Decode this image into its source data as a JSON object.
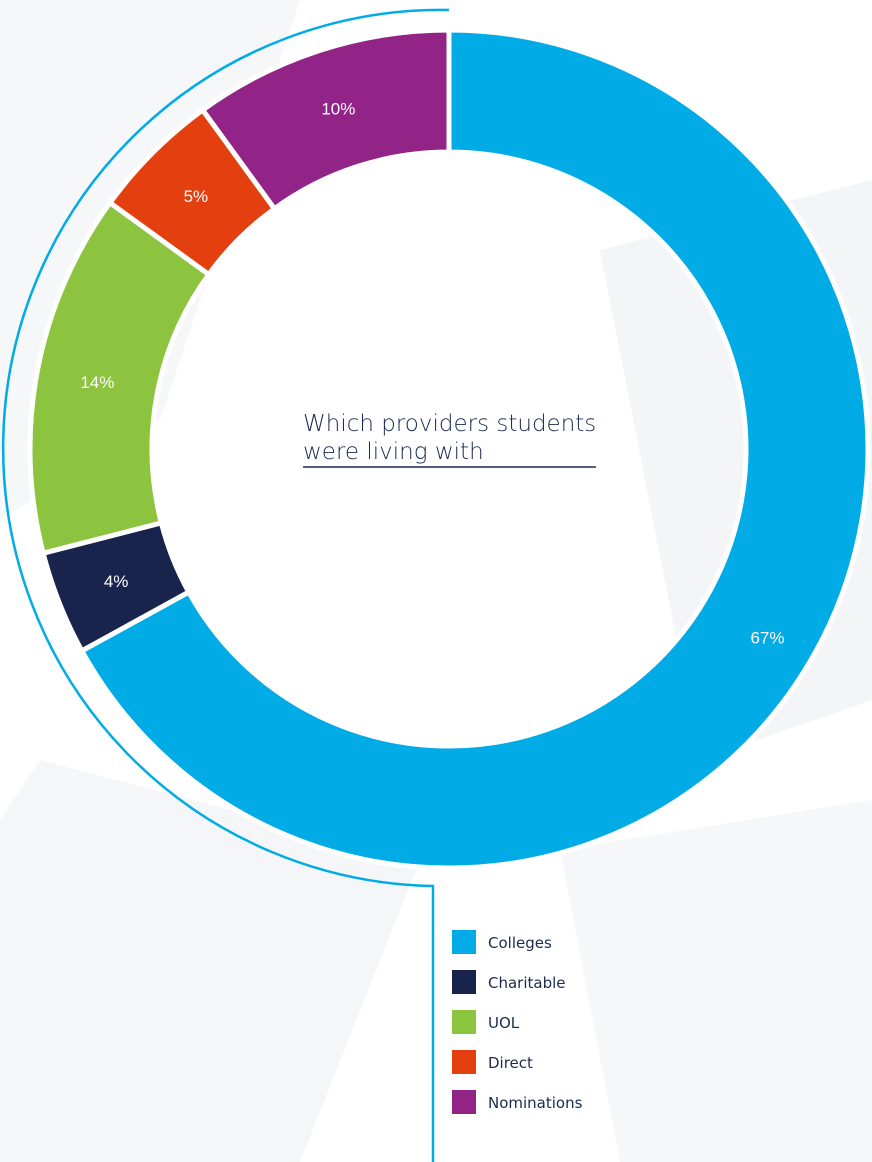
{
  "chart_data": {
    "type": "pie",
    "title_lines": [
      "Which providers students",
      "were living with"
    ],
    "categories": [
      "Colleges",
      "Charitable",
      "UOL",
      "Direct",
      "Nominations"
    ],
    "values": [
      67,
      4,
      14,
      5,
      10
    ],
    "labels": [
      "67%",
      "4%",
      "14%",
      "5%",
      "10%"
    ],
    "colors": [
      "#00abe6",
      "#19244d",
      "#8dc43f",
      "#e4400f",
      "#922387"
    ],
    "legend_position": "bottom-right"
  }
}
